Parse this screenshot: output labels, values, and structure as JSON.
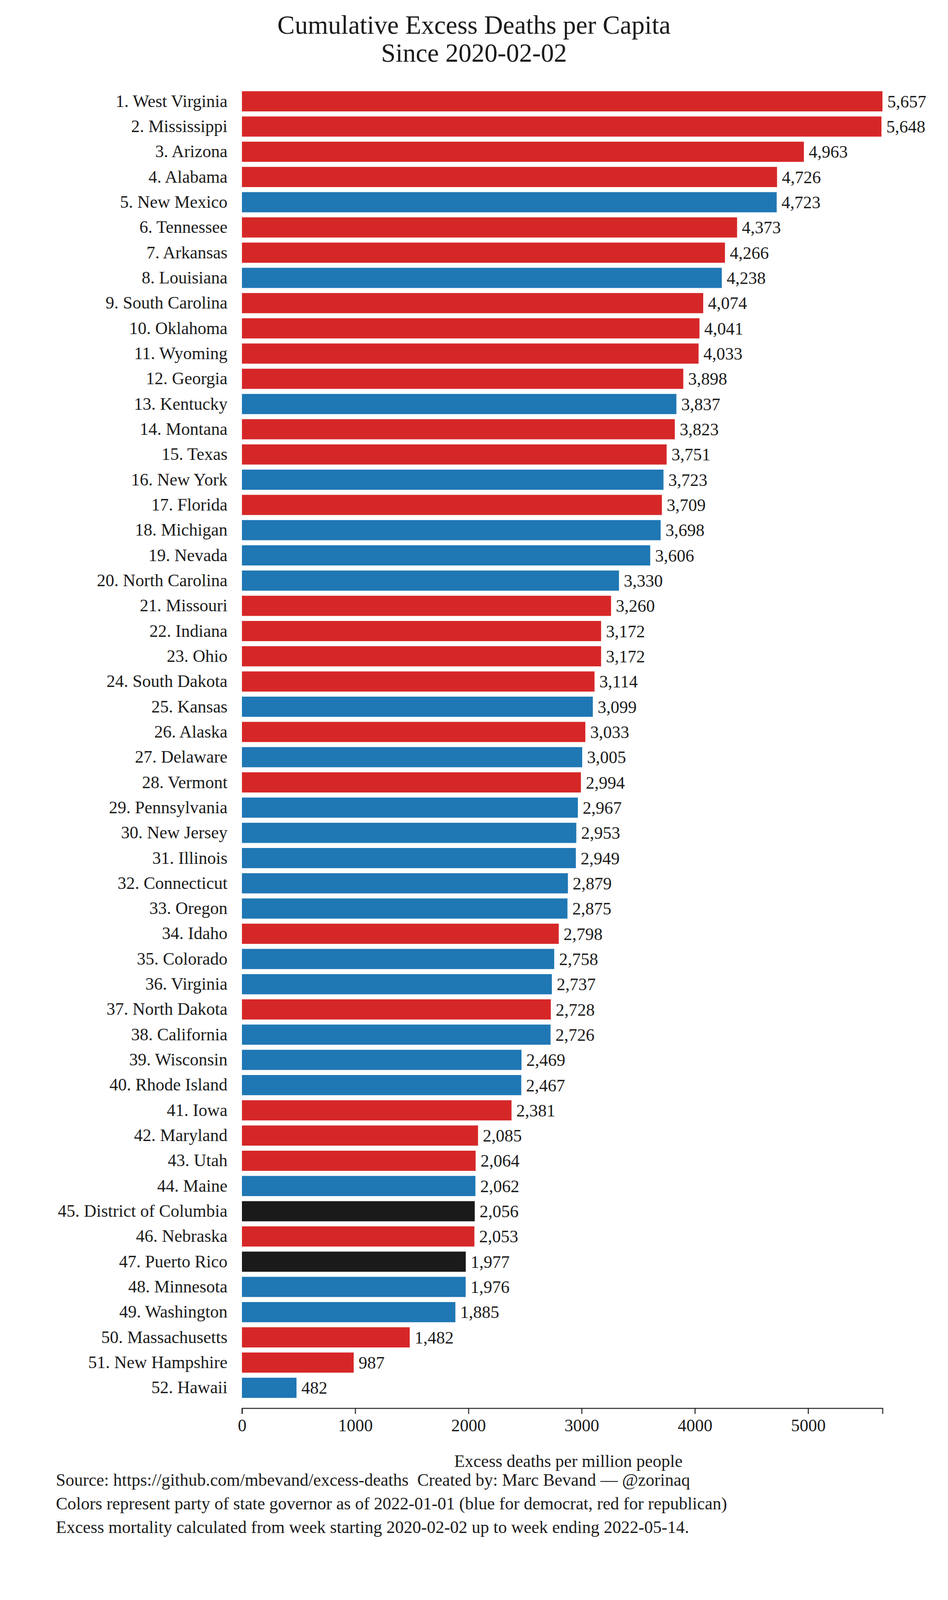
{
  "chart_data": {
    "type": "bar",
    "orientation": "horizontal",
    "title": "Cumulative Excess Deaths per Capita",
    "subtitle": "Since 2020-02-02",
    "x_label": "Excess deaths per million people",
    "categories": [
      "1. West Virginia",
      "2. Mississippi",
      "3. Arizona",
      "4. Alabama",
      "5. New Mexico",
      "6. Tennessee",
      "7. Arkansas",
      "8. Louisiana",
      "9. South Carolina",
      "10. Oklahoma",
      "11. Wyoming",
      "12. Georgia",
      "13. Kentucky",
      "14. Montana",
      "15. Texas",
      "16. New York",
      "17. Florida",
      "18. Michigan",
      "19. Nevada",
      "20. North Carolina",
      "21. Missouri",
      "22. Indiana",
      "23. Ohio",
      "24. South Dakota",
      "25. Kansas",
      "26. Alaska",
      "27. Delaware",
      "28. Vermont",
      "29. Pennsylvania",
      "30. New Jersey",
      "31. Illinois",
      "32. Connecticut",
      "33. Oregon",
      "34. Idaho",
      "35. Colorado",
      "36. Virginia",
      "37. North Dakota",
      "38. California",
      "39. Wisconsin",
      "40. Rhode Island",
      "41. Iowa",
      "42. Maryland",
      "43. Utah",
      "44. Maine",
      "45. District of Columbia",
      "46. Nebraska",
      "47. Puerto Rico",
      "48. Minnesota",
      "49. Washington",
      "50. Massachusetts",
      "51. New Hampshire",
      "52. Hawaii"
    ],
    "values": [
      5657,
      5648,
      4963,
      4726,
      4723,
      4373,
      4266,
      4238,
      4074,
      4041,
      4033,
      3898,
      3837,
      3823,
      3751,
      3723,
      3709,
      3698,
      3606,
      3330,
      3260,
      3172,
      3172,
      3114,
      3099,
      3033,
      3005,
      2994,
      2967,
      2953,
      2949,
      2879,
      2875,
      2798,
      2758,
      2737,
      2728,
      2726,
      2469,
      2467,
      2381,
      2085,
      2064,
      2062,
      2056,
      2053,
      1977,
      1976,
      1885,
      1482,
      987,
      482
    ],
    "value_labels": [
      "5,657",
      "5,648",
      "4,963",
      "4,726",
      "4,723",
      "4,373",
      "4,266",
      "4,238",
      "4,074",
      "4,041",
      "4,033",
      "3,898",
      "3,837",
      "3,823",
      "3,751",
      "3,723",
      "3,709",
      "3,698",
      "3,606",
      "3,330",
      "3,260",
      "3,172",
      "3,172",
      "3,114",
      "3,099",
      "3,033",
      "3,005",
      "2,994",
      "2,967",
      "2,953",
      "2,949",
      "2,879",
      "2,875",
      "2,798",
      "2,758",
      "2,737",
      "2,728",
      "2,726",
      "2,469",
      "2,467",
      "2,381",
      "2,085",
      "2,064",
      "2,062",
      "2,056",
      "2,053",
      "1,977",
      "1,976",
      "1,885",
      "1,482",
      "987",
      "482"
    ],
    "colors": [
      "#d62728",
      "#d62728",
      "#d62728",
      "#d62728",
      "#1f77b4",
      "#d62728",
      "#d62728",
      "#1f77b4",
      "#d62728",
      "#d62728",
      "#d62728",
      "#d62728",
      "#1f77b4",
      "#d62728",
      "#d62728",
      "#1f77b4",
      "#d62728",
      "#1f77b4",
      "#1f77b4",
      "#1f77b4",
      "#d62728",
      "#d62728",
      "#d62728",
      "#d62728",
      "#1f77b4",
      "#d62728",
      "#1f77b4",
      "#d62728",
      "#1f77b4",
      "#1f77b4",
      "#1f77b4",
      "#1f77b4",
      "#1f77b4",
      "#d62728",
      "#1f77b4",
      "#1f77b4",
      "#d62728",
      "#1f77b4",
      "#1f77b4",
      "#1f77b4",
      "#d62728",
      "#d62728",
      "#d62728",
      "#1f77b4",
      "#1a1a1a",
      "#d62728",
      "#1a1a1a",
      "#1f77b4",
      "#1f77b4",
      "#d62728",
      "#d62728",
      "#1f77b4"
    ],
    "xlim": [
      0,
      5657
    ],
    "xticks": [
      0,
      1000,
      2000,
      3000,
      4000,
      5000
    ],
    "grid": false,
    "data_labels": true,
    "annotations": [
      "Source: https://github.com/mbevand/excess-deaths  Created by: Marc Bevand — @zorinaq",
      "Colors represent party of state governor as of 2022-01-01 (blue for democrat, red for republican)",
      "Excess mortality calculated from week starting 2020-02-02 up to week ending 2022-05-14."
    ]
  }
}
